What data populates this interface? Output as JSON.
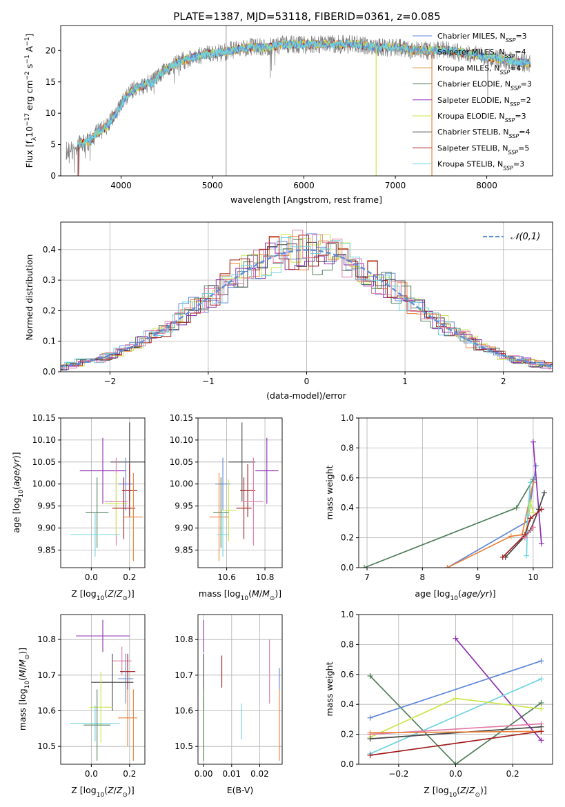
{
  "title": "PLATE=1387, MJD=53118, FIBERID=0361, z=0.085",
  "colors": {
    "chabrier_miles": "#5f86d8",
    "salpeter_miles": "#e8823a",
    "kroupa_miles": "#d1872a",
    "chabrier_elodie": "#4f7f5a",
    "salpeter_elodie": "#8e2fb0",
    "kroupa_elodie": "#c9e64a",
    "chabrier_stelib": "#444444",
    "salpeter_stelib": "#a01a1a",
    "kroupa_stelib": "#6fd3e0",
    "pink": "#e27aa6"
  },
  "chart_data": [
    {
      "type": "line",
      "xlabel": "wavelength [Angstrom, rest frame]",
      "ylabel": "Flux [fλ10⁻¹⁷ erg cm⁻² s⁻¹ A⁻¹]",
      "xlim": [
        3340,
        8720
      ],
      "ylim": [
        0,
        24
      ],
      "xticks": [
        "4000",
        "5000",
        "6000",
        "7000",
        "8000"
      ],
      "yticks": [
        "0",
        "5",
        "10",
        "15",
        "20"
      ],
      "legend_placement": "right",
      "legend": [
        "Chabrier MILES, N_SSP=3",
        "Salpeter MILES, N_SSP=4",
        "Kroupa MILES, N_SSP=4",
        "Chabrier ELODIE, N_SSP=3",
        "Salpeter ELODIE, N_SSP=2",
        "Kroupa ELODIE, N_SSP=3",
        "Chabrier STELIB, N_SSP=4",
        "Salpeter STELIB, N_SSP=5",
        "Kroupa STELIB, N_SSP=3"
      ],
      "series_model": {
        "x": [
          3450,
          3550,
          3650,
          3750,
          3850,
          3950,
          4050,
          4150,
          4250,
          4350,
          4450,
          4600,
          4800,
          5000,
          5200,
          5400,
          5600,
          5800,
          6000,
          6200,
          6400,
          6600,
          6800,
          7000,
          7200,
          7400,
          7600,
          7800,
          8000,
          8200,
          8400
        ],
        "y": [
          4,
          5,
          5.5,
          7,
          8,
          10,
          12.5,
          14,
          14.5,
          15,
          16.5,
          18,
          19,
          19.5,
          20,
          20.5,
          20.5,
          21,
          21,
          21,
          21,
          21,
          20.5,
          20.5,
          20,
          20,
          20,
          19.5,
          19,
          18.5,
          18
        ]
      }
    },
    {
      "type": "line",
      "xlabel": "(data-model)/error",
      "ylabel": "Normed distribution",
      "xlim": [
        -2.5,
        2.5
      ],
      "ylim": [
        0,
        0.49
      ],
      "xticks": [
        "−2",
        "−1",
        "0",
        "1",
        "2"
      ],
      "yticks": [
        "0.0",
        "0.1",
        "0.2",
        "0.3",
        "0.4"
      ],
      "legend_placement": "top-right",
      "legend": [
        "𝒩(0,1)"
      ]
    },
    {
      "type": "scatter",
      "xlabel": "Z [log10(Z/Z☉)]",
      "ylabel": "age  [log10(age/yr)]",
      "xlim": [
        -0.16,
        0.28
      ],
      "ylim": [
        9.81,
        10.15
      ],
      "xticks": [
        "0.0",
        "0.2"
      ],
      "yticks": [
        "9.85",
        "9.90",
        "9.95",
        "10.00",
        "10.05",
        "10.10",
        "10.15"
      ],
      "points": [
        {
          "x": 0.2,
          "y": 10.05,
          "xerr": 0.1,
          "yerr": 0.09,
          "series": "chabrier_stelib"
        },
        {
          "x": 0.06,
          "y": 10.03,
          "xerr": 0.12,
          "yerr": 0.075,
          "series": "salpeter_elodie"
        },
        {
          "x": 0.18,
          "y": 10.0,
          "xerr": 0.04,
          "yerr": 0.06,
          "series": "chabrier_miles"
        },
        {
          "x": 0.2,
          "y": 9.985,
          "xerr": 0.04,
          "yerr": 0.06,
          "series": "salpeter_stelib"
        },
        {
          "x": 0.13,
          "y": 9.96,
          "xerr": 0.06,
          "yerr": 0.1,
          "series": "pink"
        },
        {
          "x": 0.13,
          "y": 9.955,
          "xerr": 0.06,
          "yerr": 0.07,
          "series": "kroupa_elodie"
        },
        {
          "x": 0.17,
          "y": 9.945,
          "xerr": 0.06,
          "yerr": 0.07,
          "series": "salpeter_stelib"
        },
        {
          "x": 0.03,
          "y": 9.935,
          "xerr": 0.06,
          "yerr": 0.08,
          "series": "chabrier_elodie"
        },
        {
          "x": 0.22,
          "y": 9.925,
          "xerr": 0.05,
          "yerr": 0.1,
          "series": "salpeter_miles"
        },
        {
          "x": 0.02,
          "y": 9.885,
          "xerr": 0.13,
          "yerr": 0.05,
          "series": "kroupa_stelib"
        }
      ]
    },
    {
      "type": "scatter",
      "xlabel": "mass [log10(M/M☉)]",
      "ylabel": "",
      "xlim": [
        10.45,
        10.89
      ],
      "ylim": [
        9.81,
        10.15
      ],
      "xticks": [
        "10.6",
        "10.8"
      ],
      "yticks": [
        "9.85",
        "9.90",
        "9.95",
        "10.00",
        "10.05",
        "10.10",
        "10.15"
      ],
      "points": [
        {
          "x": 10.68,
          "y": 10.05,
          "xerr": 0.07,
          "yerr": 0.09,
          "series": "chabrier_stelib"
        },
        {
          "x": 10.81,
          "y": 10.03,
          "xerr": 0.06,
          "yerr": 0.075,
          "series": "salpeter_elodie"
        },
        {
          "x": 10.58,
          "y": 10.0,
          "xerr": 0.04,
          "yerr": 0.06,
          "series": "chabrier_miles"
        },
        {
          "x": 10.71,
          "y": 9.985,
          "xerr": 0.04,
          "yerr": 0.06,
          "series": "salpeter_stelib"
        },
        {
          "x": 10.74,
          "y": 9.96,
          "xerr": 0.05,
          "yerr": 0.1,
          "series": "pink"
        },
        {
          "x": 10.61,
          "y": 9.94,
          "xerr": 0.04,
          "yerr": 0.07,
          "series": "kroupa_elodie"
        },
        {
          "x": 10.69,
          "y": 9.945,
          "xerr": 0.04,
          "yerr": 0.07,
          "series": "salpeter_stelib"
        },
        {
          "x": 10.57,
          "y": 9.935,
          "xerr": 0.04,
          "yerr": 0.08,
          "series": "chabrier_elodie"
        },
        {
          "x": 10.56,
          "y": 9.925,
          "xerr": 0.05,
          "yerr": 0.1,
          "series": "salpeter_miles"
        },
        {
          "x": 10.58,
          "y": 9.885,
          "xerr": 0.03,
          "yerr": 0.05,
          "series": "kroupa_stelib"
        }
      ]
    },
    {
      "type": "line",
      "xlabel": "age  [log10(age/yr)]",
      "ylabel": "mass weight",
      "xlim": [
        6.85,
        10.35
      ],
      "ylim": [
        0,
        1.0
      ],
      "xticks": [
        "7",
        "8",
        "9",
        "10"
      ],
      "yticks": [
        "0.0",
        "0.2",
        "0.4",
        "0.6",
        "0.8",
        "1.0"
      ],
      "series": [
        {
          "color": "chabrier_elodie",
          "x": [
            6.95,
            9.7,
            10.0
          ],
          "y": [
            0.0,
            0.4,
            0.59
          ]
        },
        {
          "color": "chabrier_miles",
          "x": [
            8.45,
            9.9,
            10.05
          ],
          "y": [
            0.0,
            0.31,
            0.68
          ]
        },
        {
          "color": "salpeter_miles",
          "x": [
            8.45,
            9.6,
            9.8,
            10.0
          ],
          "y": [
            0.0,
            0.21,
            0.22,
            0.57
          ]
        },
        {
          "color": "salpeter_elodie",
          "x": [
            10.0,
            10.15
          ],
          "y": [
            0.84,
            0.16
          ]
        },
        {
          "color": "kroupa_elodie",
          "x": [
            9.85,
            9.95,
            10.0
          ],
          "y": [
            0.2,
            0.44,
            0.37
          ]
        },
        {
          "color": "kroupa_stelib",
          "x": [
            9.88,
            9.9,
            9.95
          ],
          "y": [
            0.08,
            0.35,
            0.57
          ]
        },
        {
          "color": "chabrier_stelib",
          "x": [
            9.5,
            9.95,
            10.1,
            10.2
          ],
          "y": [
            0.07,
            0.25,
            0.39,
            0.5
          ]
        },
        {
          "color": "salpeter_stelib",
          "x": [
            9.45,
            9.85,
            9.95,
            10.15
          ],
          "y": [
            0.07,
            0.22,
            0.33,
            0.39
          ]
        },
        {
          "color": "pink",
          "x": [
            9.85,
            10.0
          ],
          "y": [
            0.2,
            0.27
          ]
        }
      ]
    },
    {
      "type": "scatter",
      "xlabel": "Z [log10(Z/Z☉)]",
      "ylabel": "mass [log10(M/M☉)]",
      "xlim": [
        -0.16,
        0.28
      ],
      "ylim": [
        10.45,
        10.87
      ],
      "xticks": [
        "0.0",
        "0.2"
      ],
      "yticks": [
        "10.5",
        "10.6",
        "10.7",
        "10.8"
      ],
      "points": [
        {
          "x": 0.06,
          "y": 10.81,
          "xerr": 0.14,
          "yerr": 0.045,
          "series": "salpeter_elodie"
        },
        {
          "x": 0.16,
          "y": 10.74,
          "xerr": 0.05,
          "yerr": 0.04,
          "series": "pink"
        },
        {
          "x": 0.19,
          "y": 10.71,
          "xerr": 0.04,
          "yerr": 0.05,
          "series": "salpeter_stelib"
        },
        {
          "x": 0.18,
          "y": 10.69,
          "xerr": 0.04,
          "yerr": 0.07,
          "series": "chabrier_miles"
        },
        {
          "x": 0.11,
          "y": 10.68,
          "xerr": 0.11,
          "yerr": 0.08,
          "series": "chabrier_stelib"
        },
        {
          "x": 0.05,
          "y": 10.61,
          "xerr": 0.06,
          "yerr": 0.1,
          "series": "kroupa_elodie"
        },
        {
          "x": 0.19,
          "y": 10.58,
          "xerr": 0.05,
          "yerr": 0.08,
          "series": "salpeter_miles"
        },
        {
          "x": 0.02,
          "y": 10.565,
          "xerr": 0.13,
          "yerr": 0.05,
          "series": "kroupa_stelib"
        },
        {
          "x": 0.03,
          "y": 10.56,
          "xerr": 0.07,
          "yerr": 0.1,
          "series": "chabrier_elodie"
        },
        {
          "x": 0.22,
          "y": 10.56,
          "xerr": 0.0,
          "yerr": 0.1,
          "series": "salpeter_miles"
        }
      ]
    },
    {
      "type": "scatter",
      "xlabel": "E(B-V)",
      "ylabel": "",
      "xlim": [
        -0.002,
        0.028
      ],
      "ylim": [
        10.45,
        10.87
      ],
      "xticks": [
        "0.00",
        "0.01",
        "0.02"
      ],
      "yticks": [
        "10.5",
        "10.6",
        "10.7",
        "10.8"
      ],
      "points": [
        {
          "x": 0.0,
          "y": 10.81,
          "yerr": 0.045,
          "series": "salpeter_elodie"
        },
        {
          "x": 0.0,
          "y": 10.68,
          "yerr": 0.08,
          "series": "chabrier_stelib"
        },
        {
          "x": 0.0,
          "y": 10.56,
          "yerr": 0.1,
          "series": "kroupa_elodie"
        },
        {
          "x": 0.0,
          "y": 10.56,
          "yerr": 0.1,
          "series": "chabrier_elodie"
        },
        {
          "x": 0.0065,
          "y": 10.71,
          "yerr": 0.045,
          "series": "salpeter_stelib"
        },
        {
          "x": 0.0135,
          "y": 10.57,
          "yerr": 0.05,
          "series": "kroupa_stelib"
        },
        {
          "x": 0.0235,
          "y": 10.71,
          "yerr": 0.09,
          "series": "pink"
        },
        {
          "x": 0.027,
          "y": 10.69,
          "yerr": 0.03,
          "series": "chabrier_miles"
        },
        {
          "x": 0.027,
          "y": 10.56,
          "yerr": 0.1,
          "series": "salpeter_miles"
        }
      ]
    },
    {
      "type": "line",
      "xlabel": "Z [log10(Z/Z☉)]",
      "ylabel": "mass weight",
      "xlim": [
        -0.34,
        0.34
      ],
      "ylim": [
        0,
        1.0
      ],
      "xticks": [
        "−0.2",
        "0.0",
        "0.2"
      ],
      "yticks": [
        "0.0",
        "0.2",
        "0.4",
        "0.6",
        "0.8",
        "1.0"
      ],
      "series": [
        {
          "color": "chabrier_elodie",
          "x": [
            -0.3,
            0.0,
            0.3
          ],
          "y": [
            0.59,
            0.0,
            0.41
          ]
        },
        {
          "color": "salpeter_elodie",
          "x": [
            0.0,
            0.3
          ],
          "y": [
            0.84,
            0.16
          ]
        },
        {
          "color": "chabrier_miles",
          "x": [
            -0.3,
            0.3
          ],
          "y": [
            0.31,
            0.69
          ]
        },
        {
          "color": "kroupa_stelib",
          "x": [
            -0.3,
            0.3
          ],
          "y": [
            0.07,
            0.57
          ]
        },
        {
          "color": "kroupa_elodie",
          "x": [
            -0.3,
            0.0,
            0.3
          ],
          "y": [
            0.18,
            0.44,
            0.37
          ]
        },
        {
          "color": "pink",
          "x": [
            -0.3,
            0.3
          ],
          "y": [
            0.2,
            0.27
          ]
        },
        {
          "color": "chabrier_stelib",
          "x": [
            -0.3,
            0.3
          ],
          "y": [
            0.17,
            0.25
          ]
        },
        {
          "color": "salpeter_miles",
          "x": [
            -0.3,
            0.3
          ],
          "y": [
            0.21,
            0.22
          ]
        },
        {
          "color": "salpeter_stelib",
          "x": [
            -0.3,
            0.3
          ],
          "y": [
            0.06,
            0.22
          ]
        }
      ]
    }
  ]
}
